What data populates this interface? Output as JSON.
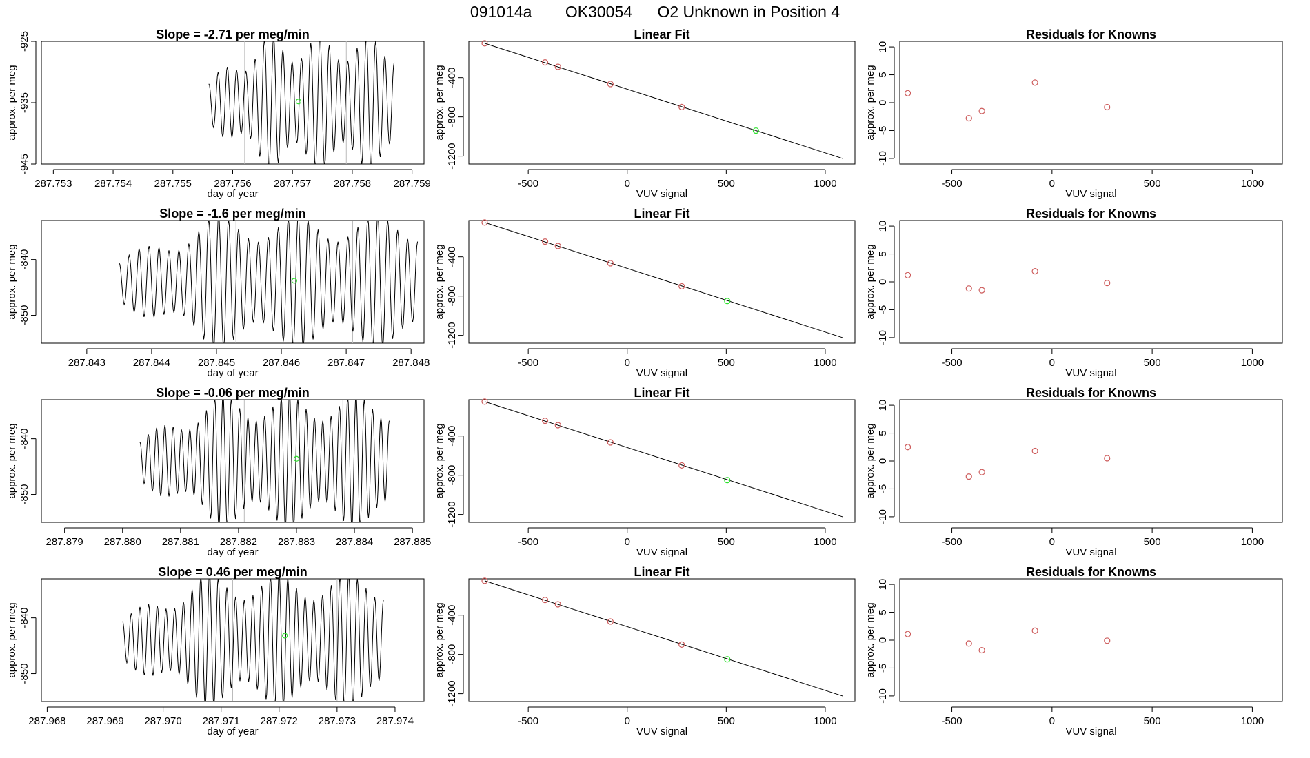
{
  "page": {
    "title_parts": [
      "091014a",
      "OK30054",
      "O2 Unknown in Position  4"
    ]
  },
  "colors": {
    "axis": "#000000",
    "trace": "#000000",
    "known_point": "#cd5c5c",
    "unknown_point": "#2ee02e",
    "marker_line": "#bbbbbb"
  },
  "labels": {
    "time_xlabel": "day of year",
    "ylabel": "approx. per meg",
    "fit_title": "Linear Fit",
    "fit_xlabel": "VUV signal",
    "resid_title": "Residuals for Knowns",
    "resid_xlabel": "VUV signal"
  },
  "chart_data": [
    {
      "type": "line",
      "role": "time-series",
      "title": "Slope =  -2.71  per meg/min",
      "slope": -2.71,
      "xlabel": "day of year",
      "ylabel": "approx. per meg",
      "xlim": [
        287.7528,
        287.7592
      ],
      "ylim": [
        -945,
        -925
      ],
      "xticks": [
        "287.753",
        "287.754",
        "287.755",
        "287.756",
        "287.757",
        "287.758",
        "287.759"
      ],
      "yticks": [
        "-945",
        "-935",
        "-925"
      ],
      "trace_start": 287.7556,
      "trace_end": 287.7587,
      "trace_top": -925,
      "trace_bottom": -945,
      "n_osc": 20,
      "markers": [
        287.7562,
        287.7579
      ],
      "unknown_point": {
        "x": 287.7571,
        "y": -934.8
      }
    },
    {
      "type": "scatter",
      "role": "linear-fit",
      "title": "Linear Fit",
      "xlabel": "VUV signal",
      "ylabel": "approx. per meg",
      "xlim": [
        -800,
        1150
      ],
      "ylim": [
        -1280,
        -30
      ],
      "xticks": [
        -500,
        0,
        500,
        1000
      ],
      "yticks": [
        -1200,
        -800,
        -400
      ],
      "line": {
        "x": [
          -720,
          1090
        ],
        "y": [
          -50,
          -1225
        ]
      },
      "knowns": {
        "x": [
          -720,
          -415,
          -350,
          -85,
          275
        ],
        "y": [
          -50,
          -245,
          -290,
          -465,
          -700
        ]
      },
      "unknown": {
        "x": 650,
        "y": -940
      }
    },
    {
      "type": "scatter",
      "role": "residuals",
      "title": "Residuals for Knowns",
      "xlabel": "VUV signal",
      "ylabel": "approx. per meg",
      "xlim": [
        -760,
        1150
      ],
      "ylim": [
        -11,
        11
      ],
      "xticks": [
        -500,
        0,
        500,
        1000
      ],
      "yticks": [
        -10,
        -5,
        0,
        5,
        10
      ],
      "knowns": {
        "x": [
          -720,
          -415,
          -350,
          -85,
          275
        ],
        "y": [
          1.7,
          -2.8,
          -1.5,
          3.6,
          -0.8
        ]
      }
    },
    {
      "type": "line",
      "role": "time-series",
      "title": "Slope =  -1.6  per meg/min",
      "slope": -1.6,
      "xlabel": "day of year",
      "ylabel": "approx. per meg",
      "xlim": [
        287.8423,
        287.8482
      ],
      "ylim": [
        -855,
        -833
      ],
      "xticks": [
        "287.843",
        "287.844",
        "287.845",
        "287.846",
        "287.847",
        "287.848"
      ],
      "yticks": [
        "-850",
        "-840"
      ],
      "trace_start": 287.8435,
      "trace_end": 287.8481,
      "trace_top": -833,
      "trace_bottom": -855,
      "n_osc": 30,
      "markers": [
        287.8453,
        287.8471
      ],
      "unknown_point": {
        "x": 287.8462,
        "y": -843.8
      }
    },
    {
      "type": "scatter",
      "role": "linear-fit",
      "title": "Linear Fit",
      "xlabel": "VUV signal",
      "ylabel": "approx. per meg",
      "xlim": [
        -800,
        1150
      ],
      "ylim": [
        -1280,
        -30
      ],
      "xticks": [
        -500,
        0,
        500,
        1000
      ],
      "yticks": [
        -1200,
        -800,
        -400
      ],
      "line": {
        "x": [
          -720,
          1090
        ],
        "y": [
          -50,
          -1225
        ]
      },
      "knowns": {
        "x": [
          -720,
          -415,
          -350,
          -85,
          275
        ],
        "y": [
          -50,
          -245,
          -290,
          -465,
          -700
        ]
      },
      "unknown": {
        "x": 505,
        "y": -850
      }
    },
    {
      "type": "scatter",
      "role": "residuals",
      "title": "Residuals for Knowns",
      "xlabel": "VUV signal",
      "ylabel": "approx. per meg",
      "xlim": [
        -760,
        1150
      ],
      "ylim": [
        -11,
        11
      ],
      "xticks": [
        -500,
        0,
        500,
        1000
      ],
      "yticks": [
        -10,
        -5,
        0,
        5,
        10
      ],
      "knowns": {
        "x": [
          -720,
          -415,
          -350,
          -85,
          275
        ],
        "y": [
          1.2,
          -1.2,
          -1.5,
          1.9,
          -0.2
        ]
      }
    },
    {
      "type": "line",
      "role": "time-series",
      "title": "Slope =  -0.06  per meg/min",
      "slope": -0.06,
      "xlabel": "day of year",
      "ylabel": "approx. per meg",
      "xlim": [
        287.8786,
        287.8852
      ],
      "ylim": [
        -855,
        -833
      ],
      "xticks": [
        "287.879",
        "287.880",
        "287.881",
        "287.882",
        "287.883",
        "287.884",
        "287.885"
      ],
      "yticks": [
        "-850",
        "-840"
      ],
      "trace_start": 287.8803,
      "trace_end": 287.8846,
      "trace_top": -833,
      "trace_bottom": -855,
      "n_osc": 30,
      "markers": [
        287.8821,
        287.8838
      ],
      "unknown_point": {
        "x": 287.883,
        "y": -843.6
      }
    },
    {
      "type": "scatter",
      "role": "linear-fit",
      "title": "Linear Fit",
      "xlabel": "VUV signal",
      "ylabel": "approx. per meg",
      "xlim": [
        -800,
        1150
      ],
      "ylim": [
        -1280,
        -30
      ],
      "xticks": [
        -500,
        0,
        500,
        1000
      ],
      "yticks": [
        -1200,
        -800,
        -400
      ],
      "line": {
        "x": [
          -720,
          1090
        ],
        "y": [
          -50,
          -1225
        ]
      },
      "knowns": {
        "x": [
          -720,
          -415,
          -350,
          -85,
          275
        ],
        "y": [
          -50,
          -245,
          -290,
          -465,
          -700
        ]
      },
      "unknown": {
        "x": 505,
        "y": -850
      }
    },
    {
      "type": "scatter",
      "role": "residuals",
      "title": "Residuals for Knowns",
      "xlabel": "VUV signal",
      "ylabel": "approx. per meg",
      "xlim": [
        -760,
        1150
      ],
      "ylim": [
        -11,
        11
      ],
      "xticks": [
        -500,
        0,
        500,
        1000
      ],
      "yticks": [
        -10,
        -5,
        0,
        5,
        10
      ],
      "knowns": {
        "x": [
          -720,
          -415,
          -350,
          -85,
          275
        ],
        "y": [
          2.5,
          -2.8,
          -2.0,
          1.8,
          0.5
        ]
      }
    },
    {
      "type": "line",
      "role": "time-series",
      "title": "Slope =  0.46  per meg/min",
      "slope": 0.46,
      "xlabel": "day of year",
      "ylabel": "approx. per meg",
      "xlim": [
        287.9679,
        287.9745
      ],
      "ylim": [
        -855,
        -833
      ],
      "xticks": [
        "287.968",
        "287.969",
        "287.970",
        "287.971",
        "287.972",
        "287.973",
        "287.974"
      ],
      "yticks": [
        "-850",
        "-840"
      ],
      "trace_start": 287.9693,
      "trace_end": 287.9738,
      "trace_top": -833,
      "trace_bottom": -855,
      "n_osc": 30,
      "markers": [
        287.9712,
        287.973
      ],
      "unknown_point": {
        "x": 287.9721,
        "y": -843.2
      }
    },
    {
      "type": "scatter",
      "role": "linear-fit",
      "title": "Linear Fit",
      "xlabel": "VUV signal",
      "ylabel": "approx. per meg",
      "xlim": [
        -800,
        1150
      ],
      "ylim": [
        -1280,
        -30
      ],
      "xticks": [
        -500,
        0,
        500,
        1000
      ],
      "yticks": [
        -1200,
        -800,
        -400
      ],
      "line": {
        "x": [
          -720,
          1090
        ],
        "y": [
          -50,
          -1225
        ]
      },
      "knowns": {
        "x": [
          -720,
          -415,
          -350,
          -85,
          275
        ],
        "y": [
          -50,
          -245,
          -290,
          -465,
          -700
        ]
      },
      "unknown": {
        "x": 505,
        "y": -850
      }
    },
    {
      "type": "scatter",
      "role": "residuals",
      "title": "Residuals for Knowns",
      "xlabel": "VUV signal",
      "ylabel": "approx. per meg",
      "xlim": [
        -760,
        1150
      ],
      "ylim": [
        -11,
        11
      ],
      "xticks": [
        -500,
        0,
        500,
        1000
      ],
      "yticks": [
        -10,
        -5,
        0,
        5,
        10
      ],
      "knowns": {
        "x": [
          -720,
          -415,
          -350,
          -85,
          275
        ],
        "y": [
          1.1,
          -0.6,
          -1.8,
          1.7,
          -0.1
        ]
      }
    }
  ]
}
